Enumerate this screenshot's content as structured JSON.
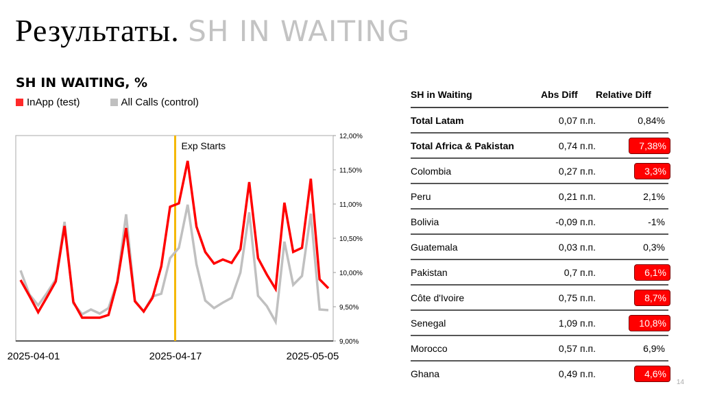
{
  "slide": {
    "title_main": "Результаты.",
    "title_sub": "SH IN WAITING",
    "page_number": "14"
  },
  "colors": {
    "test": "#ff0000",
    "control": "#c0c0c0",
    "exp_marker": "#f5b800",
    "highlight": "#ff0000"
  },
  "chart_data": {
    "type": "line",
    "title": "SH IN WAITING, %",
    "xlabel": "",
    "ylabel": "",
    "ylim": [
      9.0,
      12.0
    ],
    "yticks": [
      "12,00%",
      "11,50%",
      "11,00%",
      "10,50%",
      "10,00%",
      "9,50%",
      "9,00%"
    ],
    "xtick_labels": [
      "2025-04-01",
      "2025-04-17",
      "2025-05-05"
    ],
    "x_start": "2025-04-01",
    "x_points": 36,
    "legend": [
      "InApp (test)",
      "All Calls (control)"
    ],
    "legend_position": "top-left",
    "grid": false,
    "annotations": [
      {
        "label": "Exp Starts",
        "x_index": 17.5,
        "type": "vertical-line"
      }
    ],
    "series": [
      {
        "name": "InApp (test)",
        "color": "#ff0000",
        "values": [
          9.89,
          9.66,
          9.42,
          9.64,
          9.87,
          10.68,
          9.57,
          9.34,
          9.34,
          9.34,
          9.38,
          9.86,
          10.65,
          9.58,
          9.43,
          9.63,
          10.09,
          10.96,
          11.01,
          11.63,
          10.67,
          10.3,
          10.13,
          10.19,
          10.14,
          10.34,
          11.32,
          10.21,
          9.97,
          9.76,
          11.02,
          10.3,
          10.36,
          11.37,
          9.9,
          9.77
        ]
      },
      {
        "name": "All Calls (control)",
        "color": "#c0c0c0",
        "values": [
          10.03,
          9.68,
          9.52,
          9.7,
          9.9,
          10.74,
          9.55,
          9.39,
          9.46,
          9.4,
          9.48,
          9.87,
          10.85,
          9.59,
          9.43,
          9.65,
          9.69,
          10.21,
          10.36,
          10.99,
          10.12,
          9.59,
          9.48,
          9.56,
          9.63,
          10.0,
          10.88,
          9.66,
          9.51,
          9.28,
          10.45,
          9.82,
          9.95,
          10.86,
          9.46,
          9.45
        ]
      }
    ]
  },
  "table": {
    "headers": [
      "SH in Waiting",
      "Abs Diff",
      "Relative Diff"
    ],
    "rows": [
      {
        "name": "Total Latam",
        "abs": "0,07 п.п.",
        "rel": "0,84%",
        "bold": true,
        "highlight": false
      },
      {
        "name": "Total Africa & Pakistan",
        "abs": "0,74 п.п.",
        "rel": "7,38%",
        "bold": true,
        "highlight": true
      },
      {
        "name": "Colombia",
        "abs": "0,27 п.п.",
        "rel": "3,3%",
        "bold": false,
        "highlight": true
      },
      {
        "name": "Peru",
        "abs": "0,21 п.п.",
        "rel": "2,1%",
        "bold": false,
        "highlight": false
      },
      {
        "name": "Bolivia",
        "abs": "-0,09 п.п.",
        "rel": "-1%",
        "bold": false,
        "highlight": false
      },
      {
        "name": "Guatemala",
        "abs": "0,03 п.п.",
        "rel": "0,3%",
        "bold": false,
        "highlight": false
      },
      {
        "name": "Pakistan",
        "abs": "0,7 п.п.",
        "rel": "6,1%",
        "bold": false,
        "highlight": true
      },
      {
        "name": "Côte d'Ivoire",
        "abs": "0,75 п.п.",
        "rel": "8,7%",
        "bold": false,
        "highlight": true
      },
      {
        "name": "Senegal",
        "abs": "1,09 п.п.",
        "rel": "10,8%",
        "bold": false,
        "highlight": true
      },
      {
        "name": "Morocco",
        "abs": "0,57 п.п.",
        "rel": "6,9%",
        "bold": false,
        "highlight": false
      },
      {
        "name": "Ghana",
        "abs": "0,49 п.п.",
        "rel": "4,6%",
        "bold": false,
        "highlight": true
      }
    ]
  }
}
